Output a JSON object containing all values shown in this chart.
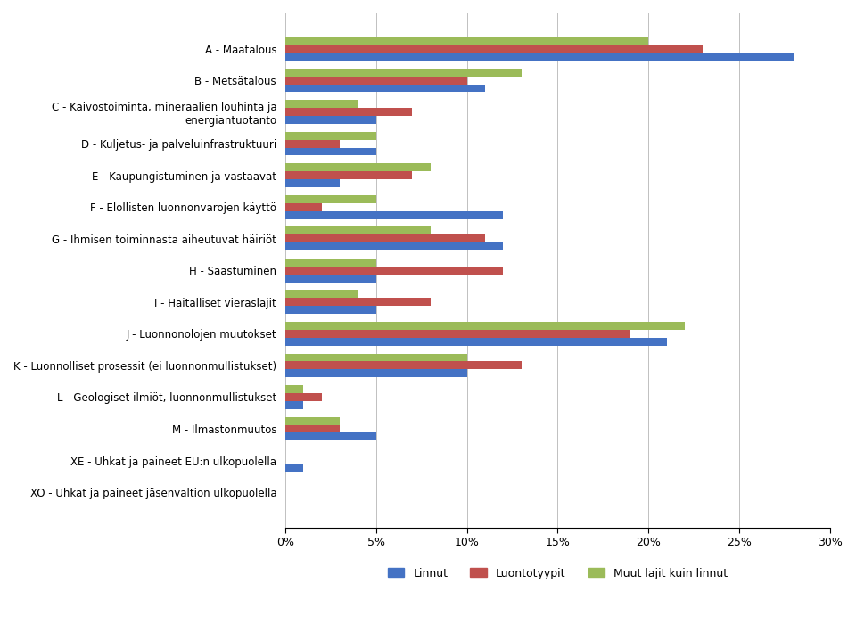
{
  "categories": [
    "A - Maatalous",
    "B - Metsätalous",
    "C - Kaivostoiminta, mineraalien louhinta ja\nenergiantuotanto",
    "D - Kuljetus- ja palveluinfrastruktuuri",
    "E - Kaupungistuminen ja vastaavat",
    "F - Elollisten luonnonvarojen käyttö",
    "G - Ihmisen toiminnasta aiheutuvat häiriöt",
    "H - Saastuminen",
    "I - Haitalliset vieraslajit",
    "J - Luonnonolojen muutokset",
    "K - Luonnolliset prosessit (ei luonnonmullistukset)",
    "L - Geologiset ilmiöt, luonnonmullistukset",
    "M - Ilmastonmuutos",
    "XE - Uhkat ja paineet EU:n ulkopuolella",
    "XO - Uhkat ja paineet jäsenvaltion ulkopuolella"
  ],
  "linnut": [
    28,
    11,
    5,
    5,
    3,
    12,
    12,
    5,
    5,
    21,
    10,
    1,
    5,
    1,
    0
  ],
  "luontotyypit": [
    23,
    10,
    7,
    3,
    7,
    2,
    11,
    12,
    8,
    19,
    13,
    2,
    3,
    0,
    0
  ],
  "muut_lajit": [
    20,
    13,
    4,
    5,
    8,
    5,
    8,
    5,
    4,
    22,
    10,
    1,
    3,
    0,
    0
  ],
  "color_linnut": "#4472C4",
  "color_luontotyypit": "#C0504D",
  "color_muut_lajit": "#9BBB59",
  "legend_labels": [
    "Linnut",
    "Luontotyypit",
    "Muut lajit kuin linnut"
  ],
  "xlim": [
    0,
    30
  ],
  "xticks": [
    0,
    5,
    10,
    15,
    20,
    25,
    30
  ],
  "xticklabels": [
    "0%",
    "5%",
    "10%",
    "15%",
    "20%",
    "25%",
    "30%"
  ],
  "bar_height": 0.25,
  "figsize": [
    9.6,
    7.0
  ],
  "background_color": "#ffffff",
  "grid_color": "#c0c0c0"
}
